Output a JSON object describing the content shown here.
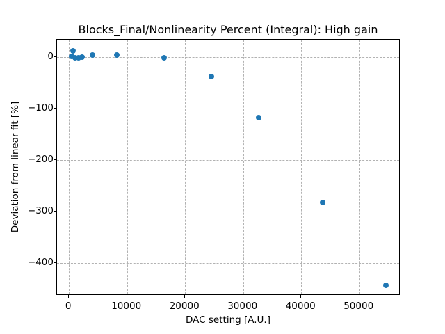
{
  "figure": {
    "title": "Blocks_Final/Nonlinearity Percent (Integral): High gain",
    "xlabel": "DAC setting [A.U.]",
    "ylabel": "Deviation from linear fit [%]"
  },
  "chart_data": {
    "type": "scatter",
    "title": "Blocks_Final/Nonlinearity Percent (Integral): High gain",
    "xlabel": "DAC setting [A.U.]",
    "ylabel": "Deviation from linear fit [%]",
    "xlim": [
      -2060,
      57100
    ],
    "ylim": [
      -464,
      34
    ],
    "x_ticks": [
      0,
      10000,
      20000,
      30000,
      40000,
      50000
    ],
    "x_tick_labels": [
      "0",
      "10000",
      "20000",
      "30000",
      "40000",
      "50000"
    ],
    "y_ticks": [
      0,
      -100,
      -200,
      -300,
      -400
    ],
    "y_tick_labels": [
      "0",
      "−100",
      "−200",
      "−300",
      "−400"
    ],
    "grid": true,
    "grid_style": "dashed",
    "grid_color": "#b2b2b2",
    "legend": false,
    "marker_color": "#1f77b4",
    "marker_diameter_px": 8,
    "points": [
      {
        "x": 500,
        "y": 2
      },
      {
        "x": 630,
        "y": 13
      },
      {
        "x": 1000,
        "y": -1
      },
      {
        "x": 1600,
        "y": -1
      },
      {
        "x": 2200,
        "y": 0
      },
      {
        "x": 4100,
        "y": 4
      },
      {
        "x": 8200,
        "y": 4
      },
      {
        "x": 16400,
        "y": -1
      },
      {
        "x": 24550,
        "y": -37
      },
      {
        "x": 32700,
        "y": -118
      },
      {
        "x": 43650,
        "y": -283
      },
      {
        "x": 54530,
        "y": -443
      }
    ]
  }
}
